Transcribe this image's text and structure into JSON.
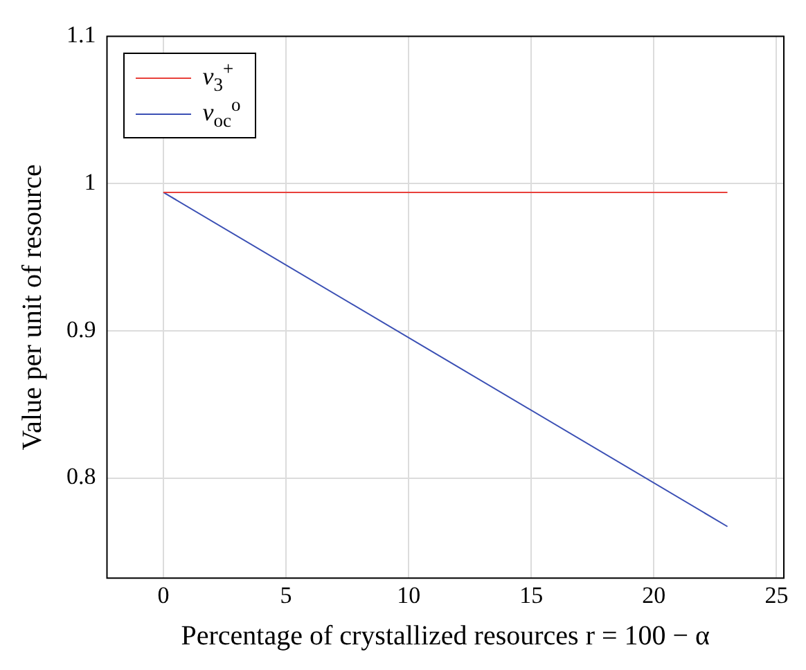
{
  "chart_data": {
    "type": "line",
    "xlabel": "Percentage of crystallized resources r = 100 − α",
    "ylabel": "Value per unit of resource",
    "xlim": [
      -2.3,
      25.3
    ],
    "ylim": [
      0.732,
      1.1
    ],
    "xticks": [
      0,
      5,
      10,
      15,
      20,
      25
    ],
    "yticks": [
      0.8,
      0.9,
      1,
      1.1
    ],
    "grid": true,
    "legend": "top left",
    "marker": "none",
    "x": [
      0,
      23
    ],
    "series": [
      {
        "name": "v$_{3}$$^{+}$",
        "color": "#e8403a",
        "values": [
          0.994,
          0.994
        ]
      },
      {
        "name": "v$_{oc}$$^{o}$",
        "color": "#3a4fb4",
        "values": [
          0.994,
          0.767
        ]
      }
    ]
  }
}
